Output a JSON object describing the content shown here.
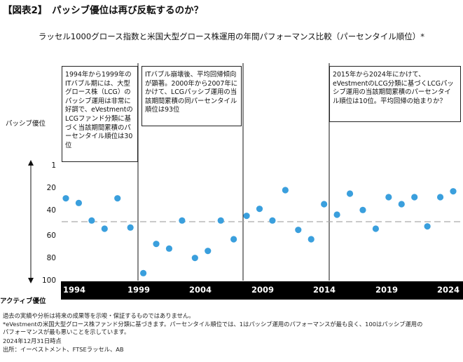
{
  "heading": "【図表2】　パッシブ優位は再び反転するのか？",
  "chart_data": {
    "type": "scatter",
    "title": "ラッセル1000グロース指数と米国大型グロース株運用の年間パフォーマンス比較（パーセンタイル順位）*",
    "ylabel_top": "パッシブ優位",
    "ylabel_bottom": "アクティブ優位",
    "ylim": [
      1,
      100
    ],
    "y_inverted": true,
    "yticks": [
      1,
      20,
      40,
      60,
      80,
      100
    ],
    "xlim": [
      1993.3,
      2024.6
    ],
    "xticks": [
      1994,
      1999,
      2004,
      2009,
      2014,
      2019,
      2024
    ],
    "reference_line": 49,
    "series": [
      {
        "name": "パーセンタイル順位",
        "color": "#3a9fdd",
        "x": [
          1994,
          1995,
          1996,
          1997,
          1998,
          1999,
          2000,
          2001,
          2002,
          2003,
          2004,
          2005,
          2006,
          2007,
          2008,
          2009,
          2010,
          2011,
          2012,
          2013,
          2014,
          2015,
          2016,
          2017,
          2018,
          2019,
          2020,
          2021,
          2022,
          2023,
          2024
        ],
        "y": [
          29,
          33,
          48,
          55,
          29,
          54,
          93,
          68,
          72,
          48,
          80,
          74,
          48,
          64,
          44,
          38,
          48,
          22,
          56,
          64,
          34,
          43,
          25,
          39,
          55,
          28,
          34,
          28,
          53,
          28,
          23
        ]
      }
    ],
    "annotations": [
      {
        "text": "1994年から1999年のITバブル期には、大型グロース株（LCG）のパッシブ運用は非常に好調で、eVestmentのLCGファンド分類に基づく当該期間累積のパーセンタイル順位は30位"
      },
      {
        "text": "ITバブル崩壊後、平均回帰傾向が顕著。2000年から2007年にかけて、LCGパッシブ運用の当該期間累積の同パーセンタイル順位は93位"
      },
      {
        "text": "2015年から2024年にかけて、eVestmentのLCG分類に基づくLCGパッシブ運用の当該期間累積のパーセンタイル順位は10位。平均回帰の始まりか？"
      }
    ]
  },
  "footnotes": [
    "過去の実績や分析は将来の成果等を示唆・保証するものではありません。",
    "*eVestmentの米国大型グロース株ファンド分類に基づきます。パーセンタイル順位では、1はパッシブ運用のパフォーマンスが最も良く、100はパッシブ運用の",
    "パフォーマンスが最も悪いことを示しています。",
    "2024年12月31日時点",
    "出所：イーベストメント、FTSEラッセル、AB"
  ]
}
